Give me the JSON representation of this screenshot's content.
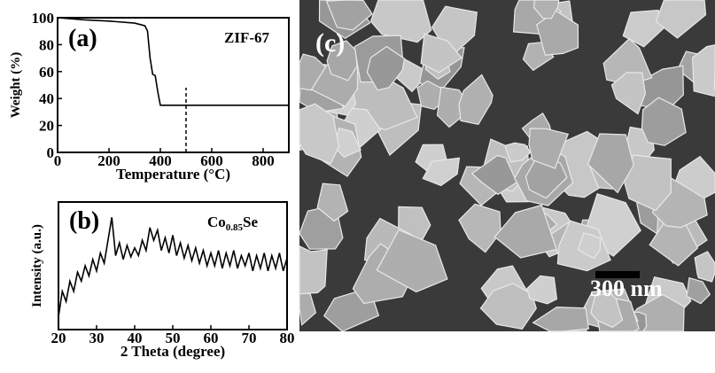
{
  "chart_data": [
    {
      "type": "line",
      "panel_label": "(a)",
      "annotation": "ZIF-67",
      "xlabel": "Temperature (°C)",
      "ylabel": "Weight (%)",
      "x": [
        0,
        100,
        200,
        300,
        340,
        350,
        360,
        370,
        380,
        390,
        400,
        500,
        900
      ],
      "values": [
        100,
        98.5,
        97.5,
        96,
        94,
        90,
        70,
        58,
        57,
        45,
        35,
        35,
        35
      ],
      "color": "#000000",
      "xlim": [
        0,
        900
      ],
      "xticks": [
        0,
        200,
        400,
        600,
        800
      ],
      "ylim": [
        0,
        100
      ],
      "yticks": [
        0,
        20,
        40,
        60,
        80,
        100
      ],
      "reference_line": {
        "x": 500,
        "y": [
          0,
          48
        ]
      }
    },
    {
      "type": "line",
      "panel_label": "(b)",
      "annotation": [
        "Co",
        "0.85",
        "Se"
      ],
      "xlabel": "2 Theta (degree)",
      "ylabel": "Intensity (a.u.)",
      "x": [
        20,
        21,
        22,
        23,
        24,
        25,
        26,
        27,
        28,
        29,
        30,
        31,
        32,
        33,
        34,
        35,
        36,
        37,
        38,
        39,
        40,
        41,
        42,
        43,
        44,
        45,
        46,
        47,
        48,
        49,
        50,
        51,
        52,
        53,
        54,
        55,
        56,
        57,
        58,
        59,
        60,
        61,
        62,
        63,
        64,
        65,
        66,
        67,
        68,
        69,
        70,
        71,
        72,
        73,
        74,
        75,
        76,
        77,
        78,
        79,
        80
      ],
      "values": [
        10,
        30,
        22,
        38,
        30,
        45,
        38,
        50,
        42,
        55,
        46,
        60,
        52,
        70,
        88,
        58,
        68,
        55,
        66,
        57,
        64,
        58,
        70,
        62,
        80,
        70,
        78,
        62,
        72,
        60,
        74,
        58,
        68,
        56,
        66,
        54,
        64,
        52,
        62,
        50,
        60,
        50,
        62,
        48,
        60,
        50,
        62,
        48,
        58,
        50,
        60,
        46,
        58,
        48,
        60,
        46,
        58,
        48,
        60,
        46,
        56
      ],
      "color": "#000000",
      "xlim": [
        20,
        80
      ],
      "xticks": [
        20,
        30,
        40,
        50,
        60,
        70,
        80
      ],
      "ylim": [
        0,
        100
      ]
    }
  ],
  "image": {
    "panel_label": "(c)",
    "scale_bar": "300 nm"
  }
}
